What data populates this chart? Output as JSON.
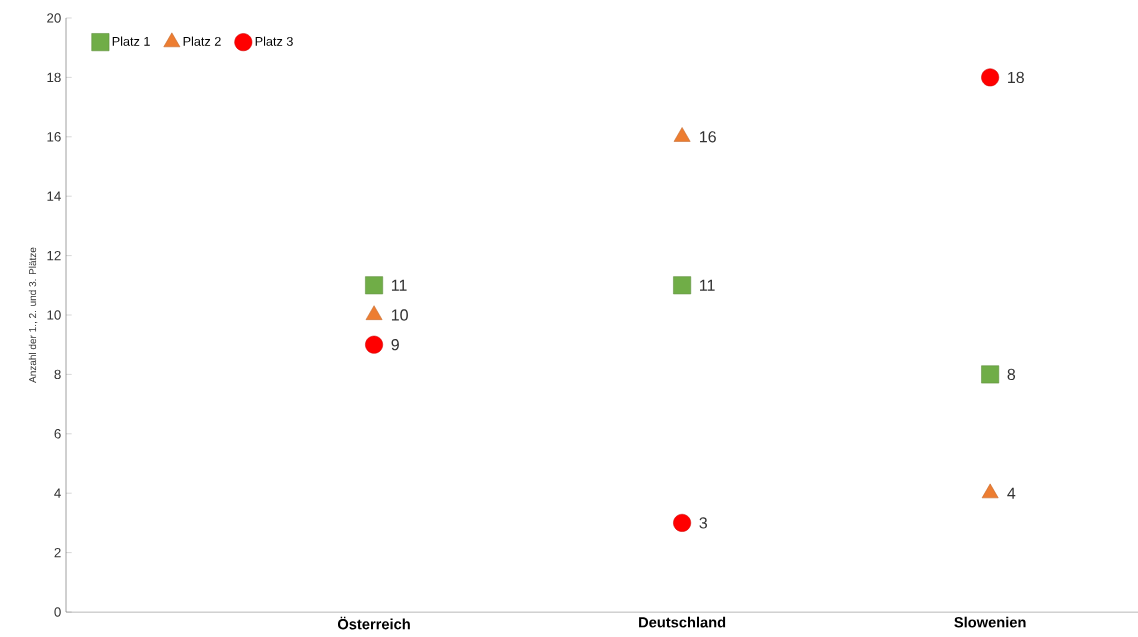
{
  "chart_data": {
    "type": "scatter",
    "ylabel": "Anzahl der 1., 2. und 3. Plätze",
    "categories": [
      null,
      "Österreich",
      "Deutschland",
      "Slowenien"
    ],
    "series": [
      {
        "name": "Platz 1",
        "color": "#70ad47",
        "marker": "square",
        "values": [
          null,
          11,
          11,
          8
        ]
      },
      {
        "name": "Platz 2",
        "color": "#ed7d31",
        "marker": "triangle",
        "values": [
          null,
          10,
          16,
          4
        ]
      },
      {
        "name": "Platz 3",
        "color": "#ff0000",
        "marker": "circle",
        "values": [
          null,
          9,
          3,
          18
        ]
      }
    ],
    "ylim": [
      0,
      20
    ],
    "yticks": [
      0,
      2,
      4,
      6,
      8,
      10,
      12,
      14,
      16,
      18,
      20
    ],
    "data_labels": true,
    "legend": "top left",
    "grid": false
  }
}
